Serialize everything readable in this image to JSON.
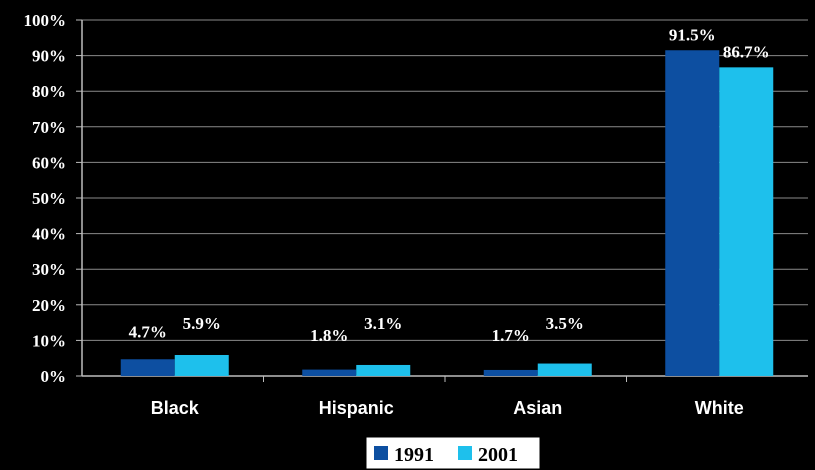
{
  "chart_data": {
    "type": "bar",
    "categories": [
      "Black",
      "Hispanic",
      "Asian",
      "White"
    ],
    "series": [
      {
        "name": "1991",
        "values": [
          4.7,
          1.8,
          1.7,
          91.5
        ],
        "labels": [
          "4.7%",
          "1.8%",
          "1.7%",
          "91.5%"
        ],
        "color": "#0d4fa1"
      },
      {
        "name": "2001",
        "values": [
          5.9,
          3.1,
          3.5,
          86.7
        ],
        "labels": [
          "5.9%",
          "3.1%",
          "3.5%",
          "86.7%"
        ],
        "color": "#1ec0ec"
      }
    ],
    "ylim": [
      0,
      100
    ],
    "yticks": [
      "0%",
      "10%",
      "20%",
      "30%",
      "40%",
      "50%",
      "60%",
      "70%",
      "80%",
      "90%",
      "100%"
    ],
    "grid": true,
    "legend_position": "bottom"
  },
  "colors": {
    "background": "#000000",
    "gridline": "#8a8a8a",
    "axis": "#bdbdbd",
    "legend_box": "#ffffff"
  }
}
